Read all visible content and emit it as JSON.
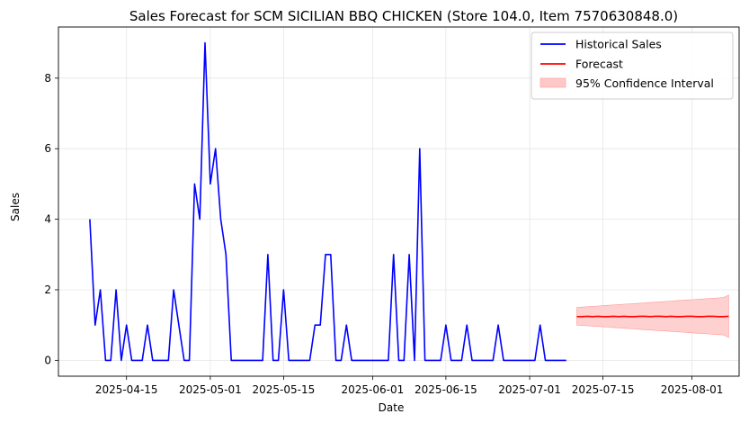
{
  "chart_data": {
    "type": "line",
    "title": "Sales Forecast for SCM SICILIAN BBQ CHICKEN (Store 104.0, Item 7570630848.0)",
    "xlabel": "Date",
    "ylabel": "Sales",
    "xlim": [
      "2025-04-02",
      "2025-08-10"
    ],
    "ylim": [
      -0.45,
      9.45
    ],
    "x_ticks": [
      "2025-04-15",
      "2025-05-01",
      "2025-05-15",
      "2025-06-01",
      "2025-06-15",
      "2025-07-01",
      "2025-07-15",
      "2025-08-01"
    ],
    "y_ticks": [
      0,
      2,
      4,
      6,
      8
    ],
    "grid": true,
    "legend_position": "top-right",
    "colors": {
      "historical": "#0000ff",
      "forecast": "#ff0000",
      "interval_fill": "#ffc8c8",
      "interval_edge": "#ff9999"
    },
    "series": [
      {
        "name": "Historical Sales",
        "start_date": "2025-04-08",
        "values": [
          4,
          1,
          2,
          0,
          0,
          2,
          0,
          1,
          0,
          0,
          0,
          1,
          0,
          0,
          0,
          0,
          2,
          1,
          0,
          0,
          5,
          4,
          9,
          5,
          6,
          4,
          3,
          0,
          0,
          0,
          0,
          0,
          0,
          0,
          3,
          0,
          0,
          2,
          0,
          0,
          0,
          0,
          0,
          1,
          1,
          3,
          3,
          0,
          0,
          1,
          0,
          0,
          0,
          0,
          0,
          0,
          0,
          0,
          3,
          0,
          0,
          3,
          0,
          6,
          0,
          0,
          0,
          0,
          1,
          0,
          0,
          0,
          1,
          0,
          0,
          0,
          0,
          0,
          1,
          0,
          0,
          0,
          0,
          0,
          0,
          0,
          1,
          0,
          0,
          0,
          0,
          0
        ]
      },
      {
        "name": "Forecast",
        "start_date": "2025-07-10",
        "values": [
          1.24,
          1.24,
          1.25,
          1.24,
          1.25,
          1.24,
          1.24,
          1.25,
          1.24,
          1.25,
          1.24,
          1.24,
          1.25,
          1.25,
          1.24,
          1.25,
          1.25,
          1.24,
          1.25,
          1.24,
          1.24,
          1.25,
          1.25,
          1.24,
          1.24,
          1.25,
          1.25,
          1.24,
          1.24,
          1.25
        ]
      },
      {
        "name": "95% Confidence Interval",
        "start_date": "2025-07-10",
        "lower": [
          1.0,
          0.99,
          0.98,
          0.97,
          0.96,
          0.95,
          0.94,
          0.93,
          0.92,
          0.91,
          0.9,
          0.89,
          0.88,
          0.87,
          0.86,
          0.85,
          0.84,
          0.83,
          0.82,
          0.81,
          0.8,
          0.79,
          0.78,
          0.77,
          0.76,
          0.75,
          0.74,
          0.73,
          0.72,
          0.65
        ],
        "upper": [
          1.5,
          1.51,
          1.52,
          1.53,
          1.54,
          1.55,
          1.56,
          1.57,
          1.58,
          1.59,
          1.6,
          1.61,
          1.62,
          1.63,
          1.64,
          1.65,
          1.66,
          1.67,
          1.68,
          1.69,
          1.7,
          1.71,
          1.72,
          1.73,
          1.74,
          1.75,
          1.76,
          1.77,
          1.78,
          1.85
        ]
      }
    ]
  }
}
